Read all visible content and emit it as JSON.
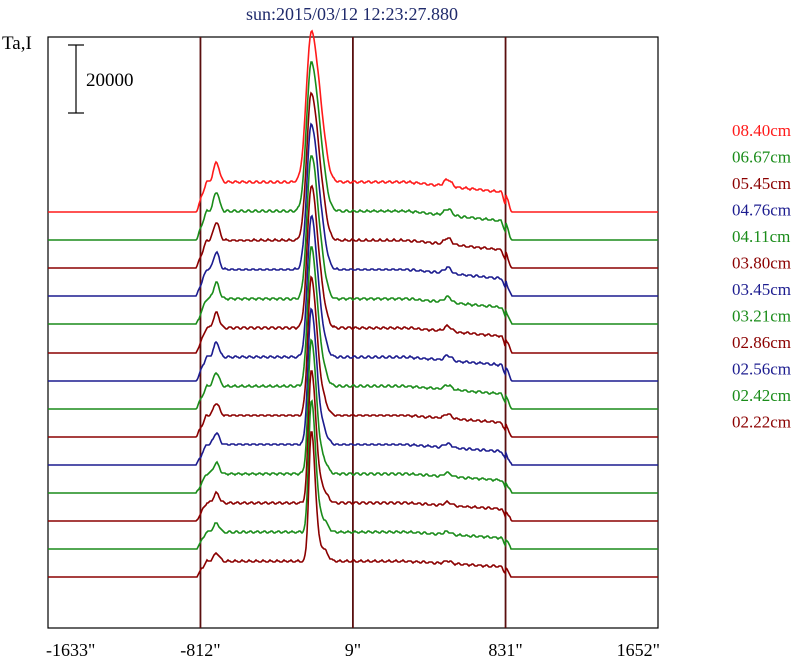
{
  "chart_data": {
    "type": "line",
    "title": "sun:2015/03/12 12:23:27.880",
    "ylabel": "Ta,I",
    "scale_bar": {
      "label": "20000",
      "value": 20000
    },
    "x_ticks": [
      {
        "value": -1633,
        "label": "-1633\""
      },
      {
        "value": -812,
        "label": "-812\""
      },
      {
        "value": 9,
        "label": "9\""
      },
      {
        "value": 831,
        "label": "831\""
      },
      {
        "value": 1652,
        "label": "1652\""
      }
    ],
    "xlim": [
      -1633,
      1652
    ],
    "vertical_lines_x": [
      -812,
      9,
      831
    ],
    "limb_x": [
      -812,
      831
    ],
    "peak_x": -215,
    "series": [
      {
        "name": "08.40cm",
        "color": "#ff1a1a"
      },
      {
        "name": "06.67cm",
        "color": "#1a8c1a"
      },
      {
        "name": "05.45cm",
        "color": "#8b0000"
      },
      {
        "name": "04.76cm",
        "color": "#1c1c8f"
      },
      {
        "name": "04.11cm",
        "color": "#1a8c1a"
      },
      {
        "name": "03.80cm",
        "color": "#8b0000"
      },
      {
        "name": "03.45cm",
        "color": "#1c1c8f"
      },
      {
        "name": "03.21cm",
        "color": "#1a8c1a"
      },
      {
        "name": "02.86cm",
        "color": "#8b0000"
      },
      {
        "name": "02.56cm",
        "color": "#1c1c8f"
      },
      {
        "name": "02.42cm",
        "color": "#1a8c1a"
      },
      {
        "name": "02.22cm",
        "color": "#8b0000"
      }
    ],
    "extra_traces": [
      {
        "color": "#1a8c1a"
      },
      {
        "color": "#8b0000"
      }
    ]
  }
}
